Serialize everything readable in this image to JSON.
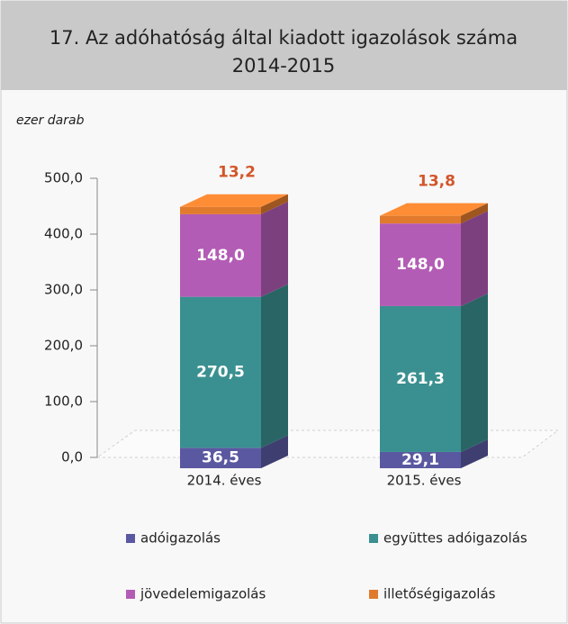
{
  "chart_data": {
    "type": "stacked_bar_3d",
    "title": [
      "17. Az adóhatóság által kiadott igazolások száma",
      "2014-2015"
    ],
    "ylabel": "ezer darab",
    "categories": [
      "2014. éves",
      "2015. éves"
    ],
    "series": [
      {
        "name": "adóigazolás",
        "color": "#5a58a0",
        "values": [
          36.5,
          29.1
        ],
        "value_labels": [
          "36,5",
          "29,1"
        ]
      },
      {
        "name": "együttes adóigazolás",
        "color": "#3a9090",
        "values": [
          270.5,
          261.3
        ],
        "value_labels": [
          "270,5",
          "261,3"
        ]
      },
      {
        "name": "jövedelemigazolás",
        "color": "#b35cb5",
        "values": [
          148.0,
          148.0
        ],
        "value_labels": [
          "148,0",
          "148,0"
        ]
      },
      {
        "name": "illetőségigazolás",
        "color": "#e07b2e",
        "values": [
          13.2,
          13.8
        ],
        "value_labels": [
          "13,2",
          "13,8"
        ]
      }
    ],
    "ylim": [
      0,
      500
    ],
    "yticks": [
      {
        "value": 0,
        "label": "0,0"
      },
      {
        "value": 100,
        "label": "100,0"
      },
      {
        "value": 200,
        "label": "200,0"
      },
      {
        "value": 300,
        "label": "300,0"
      },
      {
        "value": 400,
        "label": "400,0"
      },
      {
        "value": 500,
        "label": "500,0"
      }
    ]
  }
}
